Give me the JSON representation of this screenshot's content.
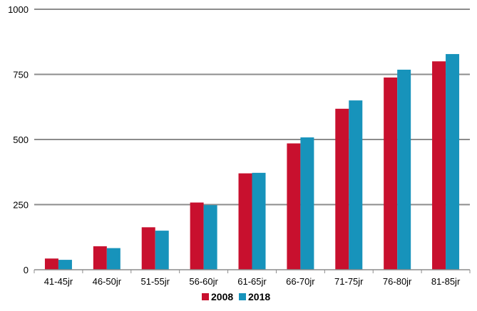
{
  "chart_data": {
    "type": "bar",
    "title": "",
    "xlabel": "",
    "ylabel": "",
    "categories": [
      "41-45jr",
      "46-50jr",
      "51-55jr",
      "56-60jr",
      "61-65jr",
      "66-70jr",
      "71-75jr",
      "76-80jr",
      "81-85jr"
    ],
    "series": [
      {
        "name": "2008",
        "color": "#c8102e",
        "values": [
          43,
          90,
          163,
          258,
          370,
          485,
          618,
          738,
          800
        ]
      },
      {
        "name": "2018",
        "color": "#1793bb",
        "values": [
          38,
          83,
          150,
          248,
          372,
          508,
          650,
          768,
          828
        ]
      }
    ],
    "ylim": [
      0,
      1000
    ],
    "yticks": [
      "0",
      "250",
      "500",
      "750",
      "1000"
    ],
    "grid": true,
    "legend_position": "bottom"
  }
}
